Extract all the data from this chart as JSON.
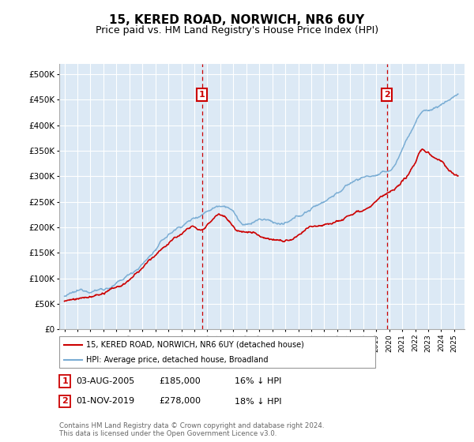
{
  "title": "15, KERED ROAD, NORWICH, NR6 6UY",
  "subtitle": "Price paid vs. HM Land Registry's House Price Index (HPI)",
  "ytick_values": [
    0,
    50000,
    100000,
    150000,
    200000,
    250000,
    300000,
    350000,
    400000,
    450000,
    500000
  ],
  "ylim": [
    0,
    520000
  ],
  "xlim_start": 1994.6,
  "xlim_end": 2025.8,
  "background_color": "#dce9f5",
  "grid_color": "#ffffff",
  "legend_label_red": "15, KERED ROAD, NORWICH, NR6 6UY (detached house)",
  "legend_label_blue": "HPI: Average price, detached house, Broadland",
  "marker1_x": 2005.58,
  "marker1_y": 185000,
  "marker1_label": "1",
  "marker1_date": "03-AUG-2005",
  "marker1_price": "£185,000",
  "marker1_note": "16% ↓ HPI",
  "marker2_x": 2019.83,
  "marker2_y": 278000,
  "marker2_label": "2",
  "marker2_date": "01-NOV-2019",
  "marker2_price": "£278,000",
  "marker2_note": "18% ↓ HPI",
  "footer": "Contains HM Land Registry data © Crown copyright and database right 2024.\nThis data is licensed under the Open Government Licence v3.0.",
  "red_color": "#cc0000",
  "blue_color": "#7aadd4",
  "title_fontsize": 11,
  "subtitle_fontsize": 9
}
